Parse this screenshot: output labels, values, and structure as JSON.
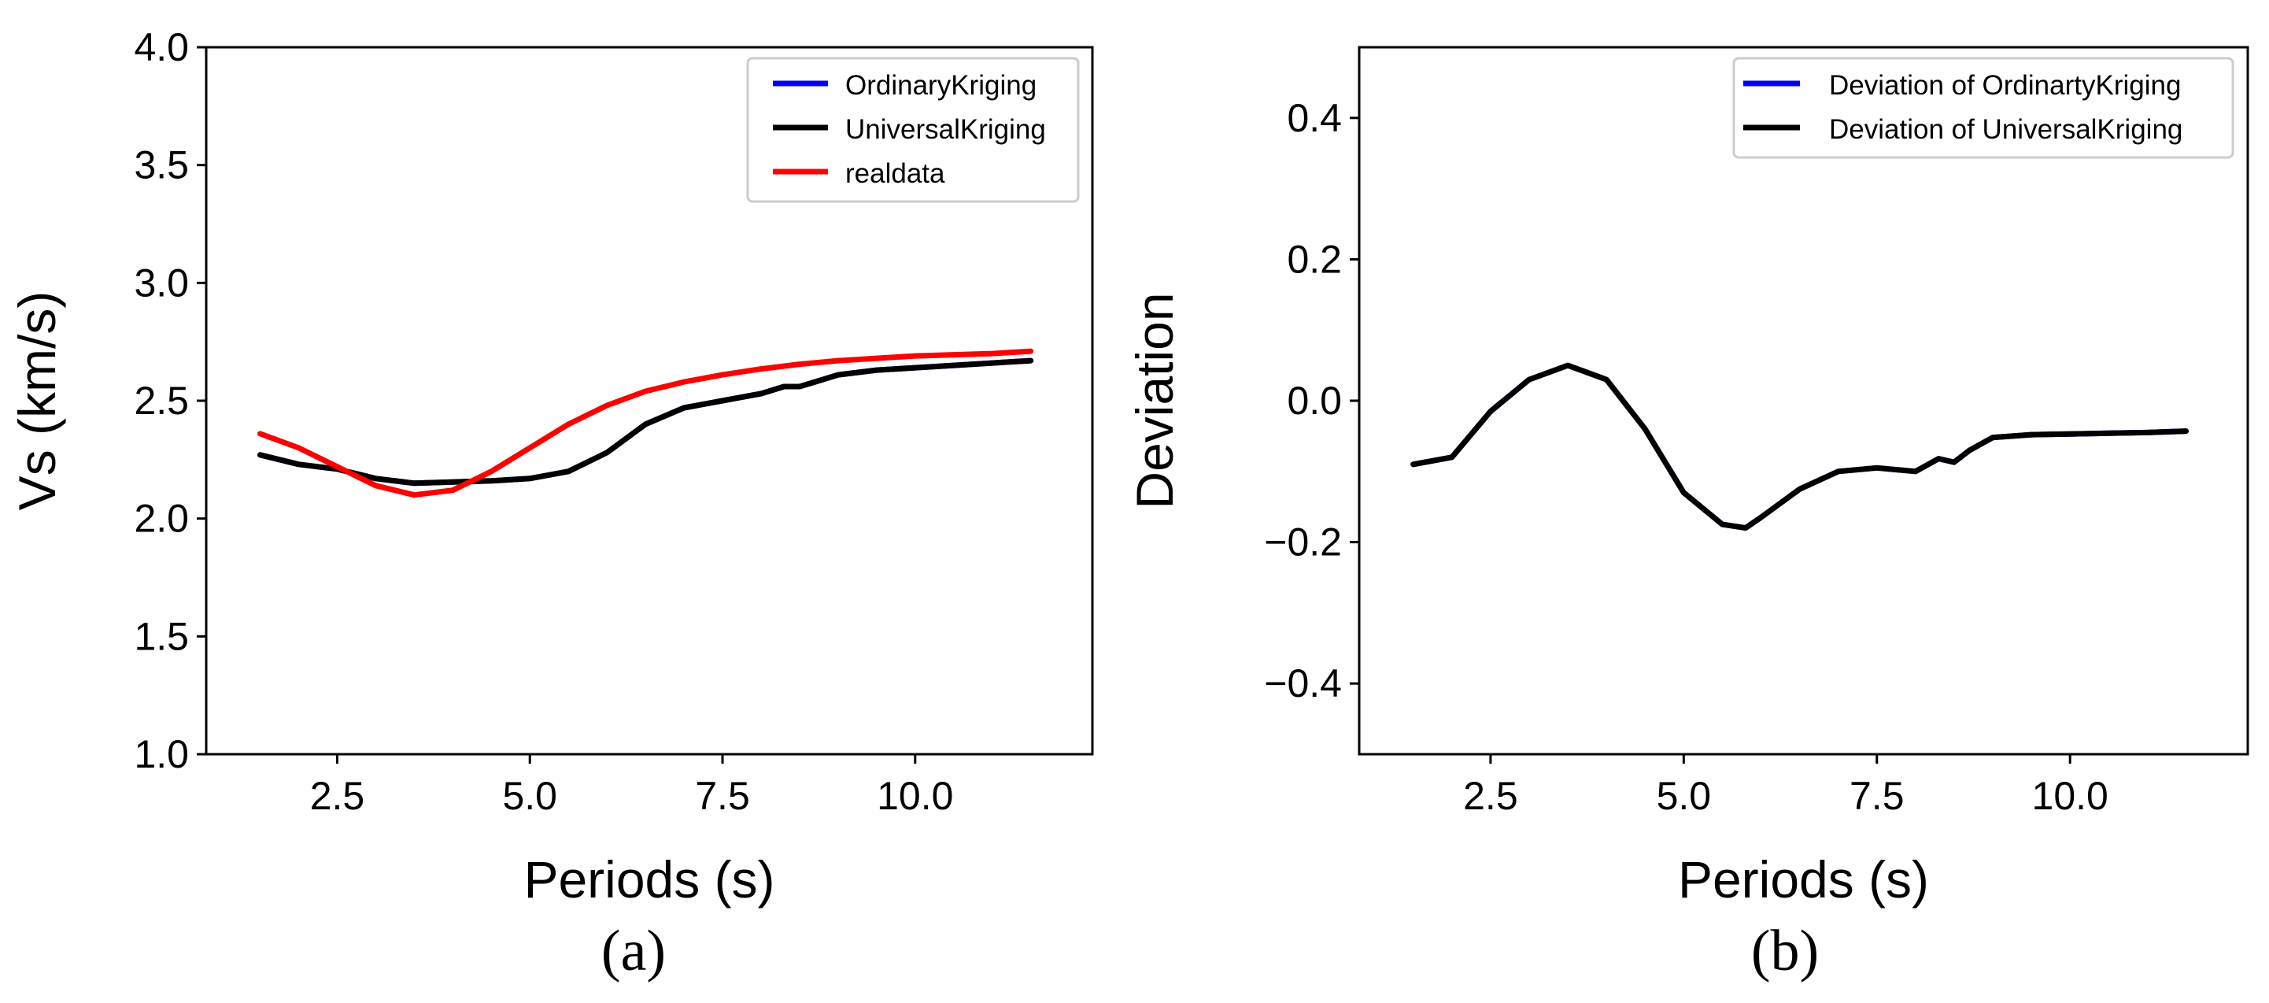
{
  "chart_data": [
    {
      "type": "line",
      "panel_label": "(a)",
      "xlabel": "Periods (s)",
      "ylabel": "Vs (km/s)",
      "xlim": [
        0.8,
        12.3
      ],
      "ylim": [
        1.0,
        4.0
      ],
      "xticks": [
        2.5,
        5.0,
        7.5,
        10.0
      ],
      "xtick_labels": [
        "2.5",
        "5.0",
        "7.5",
        "10.0"
      ],
      "yticks": [
        1.0,
        1.5,
        2.0,
        2.5,
        3.0,
        3.5,
        4.0
      ],
      "ytick_labels": [
        "1.0",
        "1.5",
        "2.0",
        "2.5",
        "3.0",
        "3.5",
        "4.0"
      ],
      "grid": false,
      "legend_position": "top-right",
      "series": [
        {
          "name": "OrdinaryKriging",
          "color": "#0000ff",
          "x": [
            1.5,
            2.0,
            2.5,
            3.0,
            3.5,
            4.0,
            4.5,
            5.0,
            5.5,
            6.0,
            6.5,
            7.0,
            7.5,
            8.0,
            8.3,
            8.5,
            8.7,
            9.0,
            9.5,
            10.0,
            10.5,
            11.0,
            11.5
          ],
          "y": [
            2.27,
            2.23,
            2.21,
            2.17,
            2.15,
            2.155,
            2.16,
            2.17,
            2.2,
            2.28,
            2.4,
            2.47,
            2.5,
            2.53,
            2.56,
            2.56,
            2.58,
            2.61,
            2.63,
            2.64,
            2.65,
            2.66,
            2.67
          ]
        },
        {
          "name": "UniversalKriging",
          "color": "#000000",
          "x": [
            1.5,
            2.0,
            2.5,
            3.0,
            3.5,
            4.0,
            4.5,
            5.0,
            5.5,
            6.0,
            6.5,
            7.0,
            7.5,
            8.0,
            8.3,
            8.5,
            8.7,
            9.0,
            9.5,
            10.0,
            10.5,
            11.0,
            11.5
          ],
          "y": [
            2.27,
            2.23,
            2.21,
            2.17,
            2.15,
            2.155,
            2.16,
            2.17,
            2.2,
            2.28,
            2.4,
            2.47,
            2.5,
            2.53,
            2.56,
            2.56,
            2.58,
            2.61,
            2.63,
            2.64,
            2.65,
            2.66,
            2.67
          ]
        },
        {
          "name": "realdata",
          "color": "#ff0000",
          "x": [
            1.5,
            2.0,
            2.5,
            3.0,
            3.5,
            4.0,
            4.5,
            5.0,
            5.5,
            6.0,
            6.5,
            7.0,
            7.5,
            8.0,
            8.5,
            9.0,
            9.5,
            10.0,
            10.5,
            11.0,
            11.5
          ],
          "y": [
            2.36,
            2.3,
            2.22,
            2.14,
            2.1,
            2.12,
            2.2,
            2.3,
            2.4,
            2.48,
            2.54,
            2.58,
            2.61,
            2.635,
            2.655,
            2.67,
            2.68,
            2.69,
            2.695,
            2.7,
            2.71
          ]
        }
      ]
    },
    {
      "type": "line",
      "panel_label": "(b)",
      "xlabel": "Periods (s)",
      "ylabel": "Deviation",
      "xlim": [
        0.8,
        12.3
      ],
      "ylim": [
        -0.5,
        0.5
      ],
      "xticks": [
        2.5,
        5.0,
        7.5,
        10.0
      ],
      "xtick_labels": [
        "2.5",
        "5.0",
        "7.5",
        "10.0"
      ],
      "yticks": [
        -0.4,
        -0.2,
        0.0,
        0.2,
        0.4
      ],
      "ytick_labels": [
        "−0.4",
        "−0.2",
        "0.0",
        "0.2",
        "0.4"
      ],
      "grid": false,
      "legend_position": "top-right",
      "series": [
        {
          "name": "Deviation of OrdinartyKriging",
          "color": "#0000ff",
          "x": [
            1.5,
            2.0,
            2.5,
            3.0,
            3.5,
            4.0,
            4.5,
            5.0,
            5.5,
            5.8,
            6.0,
            6.5,
            7.0,
            7.5,
            8.0,
            8.3,
            8.5,
            8.7,
            9.0,
            9.5,
            10.0,
            10.5,
            11.0,
            11.5
          ],
          "y": [
            -0.09,
            -0.08,
            -0.015,
            0.03,
            0.05,
            0.03,
            -0.04,
            -0.13,
            -0.175,
            -0.18,
            -0.165,
            -0.125,
            -0.1,
            -0.095,
            -0.1,
            -0.082,
            -0.087,
            -0.07,
            -0.052,
            -0.048,
            -0.047,
            -0.046,
            -0.045,
            -0.043
          ]
        },
        {
          "name": "Deviation of UniversalKriging",
          "color": "#000000",
          "x": [
            1.5,
            2.0,
            2.5,
            3.0,
            3.5,
            4.0,
            4.5,
            5.0,
            5.5,
            5.8,
            6.0,
            6.5,
            7.0,
            7.5,
            8.0,
            8.3,
            8.5,
            8.7,
            9.0,
            9.5,
            10.0,
            10.5,
            11.0,
            11.5
          ],
          "y": [
            -0.09,
            -0.08,
            -0.015,
            0.03,
            0.05,
            0.03,
            -0.04,
            -0.13,
            -0.175,
            -0.18,
            -0.165,
            -0.125,
            -0.1,
            -0.095,
            -0.1,
            -0.082,
            -0.087,
            -0.07,
            -0.052,
            -0.048,
            -0.047,
            -0.046,
            -0.045,
            -0.043
          ]
        }
      ]
    }
  ]
}
